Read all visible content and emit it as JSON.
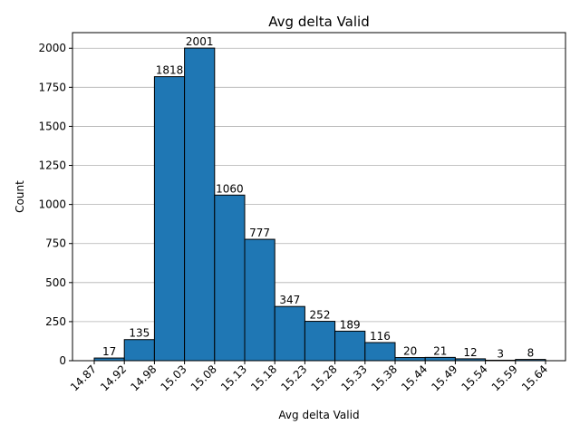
{
  "chart_data": {
    "type": "bar",
    "title": "Avg delta Valid",
    "xlabel": "Avg delta Valid",
    "ylabel": "Count",
    "x_tick_labels": [
      "14.87",
      "14.92",
      "14.98",
      "15.03",
      "15.08",
      "15.13",
      "15.18",
      "15.23",
      "15.28",
      "15.33",
      "15.38",
      "15.44",
      "15.49",
      "15.54",
      "15.59",
      "15.64"
    ],
    "values": [
      17,
      135,
      1818,
      2001,
      1060,
      777,
      347,
      252,
      189,
      116,
      20,
      21,
      12,
      3,
      8
    ],
    "ylim": [
      0,
      2100
    ],
    "y_ticks": [
      0,
      250,
      500,
      750,
      1000,
      1250,
      1500,
      1750,
      2000
    ],
    "grid": "y",
    "bar_color": "#1f77b4"
  }
}
